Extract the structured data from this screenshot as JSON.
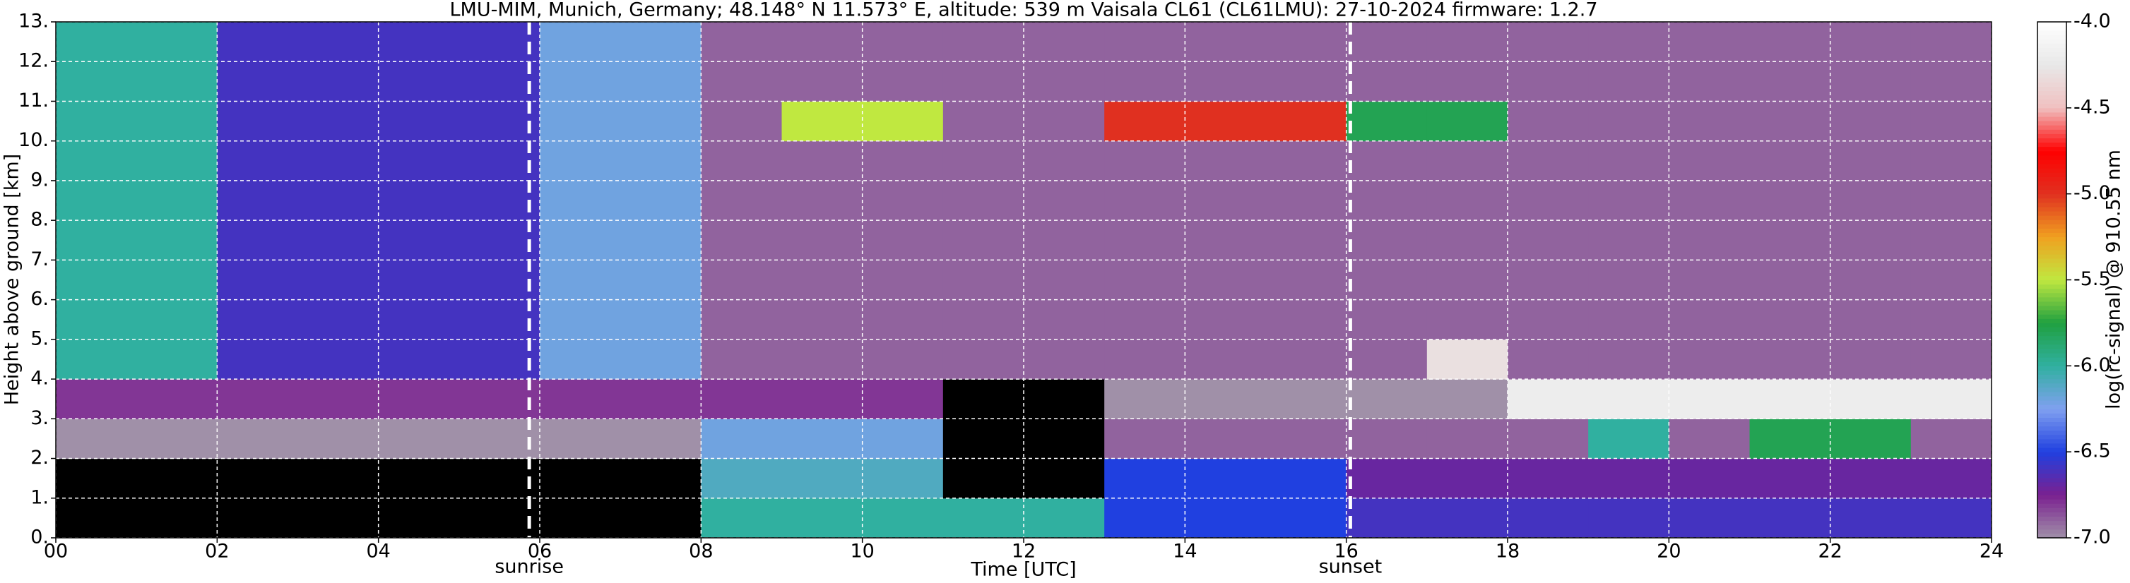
{
  "chart_data": {
    "type": "heatmap",
    "title": "LMU-MIM, Munich, Germany; 48.148° N 11.573° E, altitude: 539 m    Vaisala CL61 (CL61LMU): 27-10-2024    firmware: 1.2.7",
    "x_label": "Time [UTC]",
    "y_label": "Height above ground [km]",
    "colorbar_label": "log(rc-signal) @ 910.55 nm",
    "x": [
      0.5,
      1.5,
      2.5,
      3.5,
      4.5,
      5.5,
      6.5,
      7.5,
      8.5,
      9.5,
      10.5,
      11.5,
      12.5,
      13.5,
      14.5,
      15.5,
      16.5,
      17.5,
      18.5,
      19.5,
      20.5,
      21.5,
      22.5,
      23.5
    ],
    "y": [
      0.5,
      1.5,
      2.5,
      3.5,
      4.5,
      5.5,
      6.5,
      7.5,
      8.5,
      9.5,
      10.5,
      11.5,
      12.5
    ],
    "values": [
      [
        -7.5,
        -7.5,
        -7.5,
        -7.5,
        -7.5,
        -7.5,
        -7.5,
        -7.5,
        -6.0,
        -6.0,
        -6.0,
        -6.0,
        -6.0,
        -6.5,
        -6.5,
        -6.5,
        -6.6,
        -6.6,
        -6.6,
        -6.6,
        -6.6,
        -6.6,
        -6.6,
        -6.6
      ],
      [
        -7.5,
        -7.5,
        -7.5,
        -7.5,
        -7.5,
        -7.5,
        -7.5,
        -7.5,
        -6.1,
        -6.1,
        -6.1,
        -7.5,
        -7.5,
        -6.5,
        -6.5,
        -6.5,
        -6.7,
        -6.7,
        -6.7,
        -6.7,
        -6.7,
        -6.7,
        -6.7,
        -6.7
      ],
      [
        -7.0,
        -7.0,
        -7.0,
        -7.0,
        -7.0,
        -7.0,
        -7.0,
        -7.0,
        -6.2,
        -6.2,
        -6.2,
        -7.5,
        -7.5,
        -6.9,
        -6.9,
        -6.9,
        -6.9,
        -6.9,
        -6.9,
        -6.0,
        -6.9,
        -5.8,
        -5.8,
        -6.9
      ],
      [
        -6.8,
        -6.8,
        -6.8,
        -6.8,
        -6.8,
        -6.8,
        -6.8,
        -6.8,
        -6.8,
        -6.8,
        -6.8,
        -7.2,
        -7.2,
        -7.0,
        -7.0,
        -7.0,
        -7.0,
        -7.0,
        -4.2,
        -4.2,
        -4.2,
        -4.2,
        -4.2,
        -4.2
      ],
      [
        -6.0,
        -6.0,
        -6.6,
        -6.6,
        -6.6,
        -6.6,
        -6.2,
        -6.2,
        -6.9,
        -6.9,
        -6.9,
        -6.9,
        -6.9,
        -6.9,
        -6.9,
        -6.9,
        -6.9,
        -4.3,
        -6.9,
        -6.9,
        -6.9,
        -6.9,
        -6.9,
        -6.9
      ],
      [
        -6.0,
        -6.0,
        -6.6,
        -6.6,
        -6.6,
        -6.6,
        -6.2,
        -6.2,
        -6.9,
        -6.9,
        -6.9,
        -6.9,
        -6.9,
        -6.9,
        -6.9,
        -6.9,
        -6.9,
        -6.9,
        -6.9,
        -6.9,
        -6.9,
        -6.9,
        -6.9,
        -6.9
      ],
      [
        -6.0,
        -6.0,
        -6.6,
        -6.6,
        -6.6,
        -6.6,
        -6.2,
        -6.2,
        -6.9,
        -6.9,
        -6.9,
        -6.9,
        -6.9,
        -6.9,
        -6.9,
        -6.9,
        -6.9,
        -6.9,
        -6.9,
        -6.9,
        -6.9,
        -6.9,
        -6.9,
        -6.9
      ],
      [
        -6.0,
        -6.0,
        -6.6,
        -6.6,
        -6.6,
        -6.6,
        -6.2,
        -6.2,
        -6.9,
        -6.9,
        -6.9,
        -6.9,
        -6.9,
        -6.9,
        -6.9,
        -6.9,
        -6.9,
        -6.9,
        -6.9,
        -6.9,
        -6.9,
        -6.9,
        -6.9,
        -6.9
      ],
      [
        -6.0,
        -6.0,
        -6.6,
        -6.6,
        -6.6,
        -6.6,
        -6.2,
        -6.2,
        -6.9,
        -6.9,
        -6.9,
        -6.9,
        -6.9,
        -6.9,
        -6.9,
        -6.9,
        -6.9,
        -6.9,
        -6.9,
        -6.9,
        -6.9,
        -6.9,
        -6.9,
        -6.9
      ],
      [
        -6.0,
        -6.0,
        -6.6,
        -6.6,
        -6.6,
        -6.6,
        -6.2,
        -6.2,
        -6.9,
        -6.9,
        -6.9,
        -6.9,
        -6.9,
        -6.9,
        -6.9,
        -6.9,
        -6.9,
        -6.9,
        -6.9,
        -6.9,
        -6.9,
        -6.9,
        -6.9,
        -6.9
      ],
      [
        -6.0,
        -6.0,
        -6.6,
        -6.6,
        -6.6,
        -6.6,
        -6.2,
        -6.2,
        -6.9,
        -5.5,
        -5.5,
        -6.9,
        -6.9,
        -5.0,
        -5.0,
        -5.0,
        -5.8,
        -5.8,
        -6.9,
        -6.9,
        -6.9,
        -6.9,
        -6.9,
        -6.9
      ],
      [
        -6.0,
        -6.0,
        -6.6,
        -6.6,
        -6.6,
        -6.6,
        -6.2,
        -6.2,
        -6.9,
        -6.9,
        -6.9,
        -6.9,
        -6.9,
        -6.9,
        -6.9,
        -6.9,
        -6.9,
        -6.9,
        -6.9,
        -6.9,
        -6.9,
        -6.9,
        -6.9,
        -6.9
      ],
      [
        -6.0,
        -6.0,
        -6.6,
        -6.6,
        -6.6,
        -6.6,
        -6.2,
        -6.2,
        -6.9,
        -6.9,
        -6.9,
        -6.9,
        -6.9,
        -6.9,
        -6.9,
        -6.9,
        -6.9,
        -6.9,
        -6.9,
        -6.9,
        -6.9,
        -6.9,
        -6.9,
        -6.9
      ]
    ],
    "xlim": [
      0,
      24
    ],
    "ylim": [
      0,
      13
    ],
    "zlim": [
      -7,
      -4
    ],
    "xticks": [
      {
        "value": 0,
        "label": "00"
      },
      {
        "value": 2,
        "label": "02"
      },
      {
        "value": 4,
        "label": "04"
      },
      {
        "value": 6,
        "label": "06"
      },
      {
        "value": 8,
        "label": "08"
      },
      10,
      12,
      14,
      16,
      18,
      20,
      22,
      24
    ],
    "yticks": [
      {
        "value": 0,
        "label": "0."
      },
      {
        "value": 1,
        "label": "1."
      },
      {
        "value": 2,
        "label": "2."
      },
      {
        "value": 3,
        "label": "3."
      },
      {
        "value": 4,
        "label": "4."
      },
      {
        "value": 5,
        "label": "5."
      },
      {
        "value": 6,
        "label": "6."
      },
      {
        "value": 7,
        "label": "7."
      },
      {
        "value": 8,
        "label": "8."
      },
      {
        "value": 9,
        "label": "9."
      },
      {
        "value": 10,
        "label": "10."
      },
      {
        "value": 11,
        "label": "11."
      },
      {
        "value": 12,
        "label": "12."
      },
      {
        "value": 13,
        "label": "13."
      }
    ],
    "zticks": [
      {
        "value": -4,
        "label": "-4.0"
      },
      {
        "value": -4.5,
        "label": "-4.5"
      },
      {
        "value": -5,
        "label": "-5.0"
      },
      {
        "value": -5.5,
        "label": "-5.5"
      },
      {
        "value": -6,
        "label": "-6.0"
      },
      {
        "value": -6.5,
        "label": "-6.5"
      },
      {
        "value": -7,
        "label": "-7.0"
      }
    ],
    "colormap": [
      "#a090a8",
      "#7a2090",
      "#2040e0",
      "#80a0f0",
      "#30b0a0",
      "#20a040",
      "#c0e840",
      "#f0a020",
      "#e03020",
      "#ff0000",
      "#f0c0c0",
      "#e8e8e8",
      "#ffffff"
    ],
    "under_color": "#000000",
    "grid": true,
    "annotations": [
      {
        "text": "sunrise",
        "x": 5.87
      },
      {
        "text": "sunset",
        "x": 16.05
      }
    ]
  }
}
